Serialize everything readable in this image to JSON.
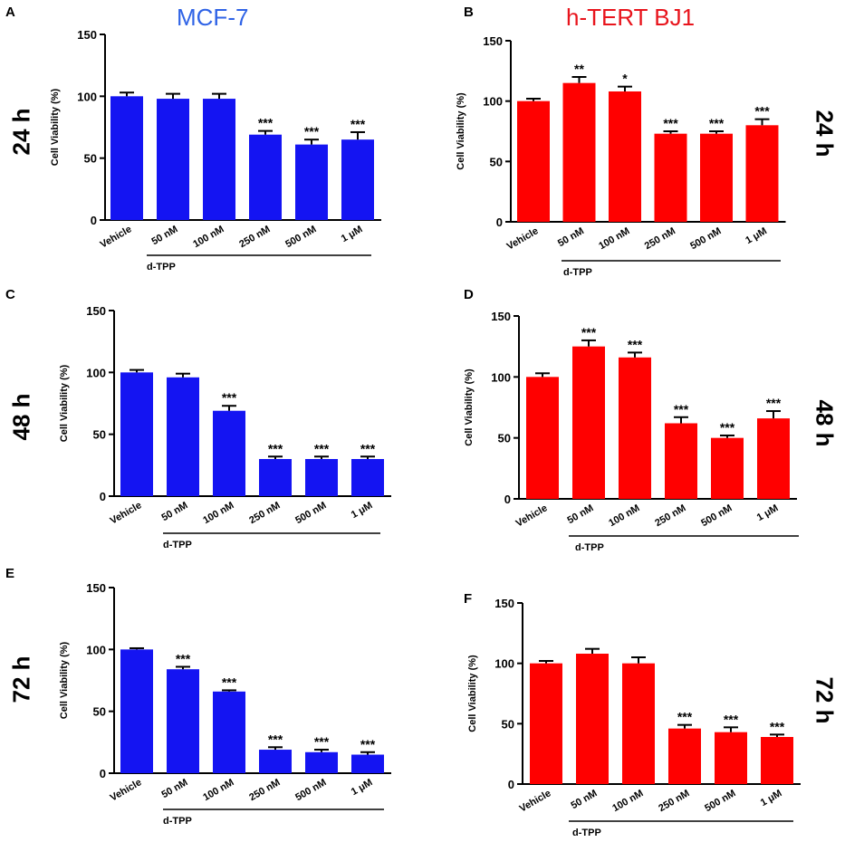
{
  "column_titles": {
    "left": {
      "text": "MCF-7",
      "color": "#2f63e6"
    },
    "right": {
      "text": "h-TERT BJ1",
      "color": "#e8141c"
    }
  },
  "row_labels": {
    "left": [
      "24 h",
      "48 h",
      "72 h"
    ],
    "right": [
      "24 h",
      "48 h",
      "72 h"
    ]
  },
  "colors": {
    "blue": "#1414f2",
    "red": "#ff0000"
  },
  "chart_data": [
    {
      "panel": "A",
      "type": "bar",
      "cell_line": "MCF-7",
      "time": "24 h",
      "ylabel": "Cell Viability (%)",
      "ylim": [
        0,
        150
      ],
      "yticks": [
        0,
        50,
        100,
        150
      ],
      "categories": [
        "Vehicle",
        "50 nM",
        "100 nM",
        "250 nM",
        "500 nM",
        "1 μM"
      ],
      "values": [
        100,
        98,
        98,
        69,
        61,
        65
      ],
      "errors": [
        3,
        4,
        4,
        3,
        4,
        6
      ],
      "significance": [
        "",
        "",
        "",
        "***",
        "***",
        "***"
      ],
      "group_label": "d-TPP",
      "color": "#1414f2"
    },
    {
      "panel": "B",
      "type": "bar",
      "cell_line": "h-TERT BJ1",
      "time": "24 h",
      "ylabel": "Cell Viability (%)",
      "ylim": [
        0,
        150
      ],
      "yticks": [
        0,
        50,
        100,
        150
      ],
      "categories": [
        "Vehicle",
        "50 nM",
        "100 nM",
        "250 nM",
        "500 nM",
        "1 μM"
      ],
      "values": [
        100,
        115,
        108,
        73,
        73,
        80
      ],
      "errors": [
        2,
        5,
        4,
        2,
        2,
        5
      ],
      "significance": [
        "",
        "**",
        "*",
        "***",
        "***",
        "***"
      ],
      "group_label": "d-TPP",
      "color": "#ff0000"
    },
    {
      "panel": "C",
      "type": "bar",
      "cell_line": "MCF-7",
      "time": "48 h",
      "ylabel": "Cell Viability (%)",
      "ylim": [
        0,
        150
      ],
      "yticks": [
        0,
        50,
        100,
        150
      ],
      "categories": [
        "Vehicle",
        "50 nM",
        "100 nM",
        "250 nM",
        "500 nM",
        "1 μM"
      ],
      "values": [
        100,
        96,
        69,
        30,
        30,
        30
      ],
      "errors": [
        2,
        3,
        4,
        2,
        2,
        2
      ],
      "significance": [
        "",
        "",
        "***",
        "***",
        "***",
        "***"
      ],
      "group_label": "d-TPP",
      "color": "#1414f2"
    },
    {
      "panel": "D",
      "type": "bar",
      "cell_line": "h-TERT BJ1",
      "time": "48 h",
      "ylabel": "Cell Viability (%)",
      "ylim": [
        0,
        150
      ],
      "yticks": [
        0,
        50,
        100,
        150
      ],
      "categories": [
        "Vehicle",
        "50 nM",
        "100 nM",
        "250 nM",
        "500 nM",
        "1 μM"
      ],
      "values": [
        100,
        125,
        116,
        62,
        50,
        66
      ],
      "errors": [
        3,
        5,
        4,
        5,
        2,
        6
      ],
      "significance": [
        "",
        "***",
        "***",
        "***",
        "***",
        "***"
      ],
      "group_label": "d-TPP",
      "color": "#ff0000"
    },
    {
      "panel": "E",
      "type": "bar",
      "cell_line": "MCF-7",
      "time": "72 h",
      "ylabel": "Cell Viability (%)",
      "ylim": [
        0,
        150
      ],
      "yticks": [
        0,
        50,
        100,
        150
      ],
      "categories": [
        "Vehicle",
        "50 nM",
        "100 nM",
        "250 nM",
        "500 nM",
        "1 μM"
      ],
      "values": [
        100,
        84,
        66,
        19,
        17,
        15
      ],
      "errors": [
        1,
        2,
        1,
        2,
        2,
        2
      ],
      "significance": [
        "",
        "***",
        "***",
        "***",
        "***",
        "***"
      ],
      "group_label": "d-TPP",
      "color": "#1414f2"
    },
    {
      "panel": "F",
      "type": "bar",
      "cell_line": "h-TERT BJ1",
      "time": "72 h",
      "ylabel": "Cell Viability (%)",
      "ylim": [
        0,
        150
      ],
      "yticks": [
        0,
        50,
        100,
        150
      ],
      "categories": [
        "Vehicle",
        "50 nM",
        "100 nM",
        "250 nM",
        "500 nM",
        "1 μM"
      ],
      "values": [
        100,
        108,
        100,
        46,
        43,
        39
      ],
      "errors": [
        2,
        4,
        5,
        3,
        4,
        2
      ],
      "significance": [
        "",
        "",
        "",
        "***",
        "***",
        "***"
      ],
      "group_label": "d-TPP",
      "color": "#ff0000"
    }
  ]
}
